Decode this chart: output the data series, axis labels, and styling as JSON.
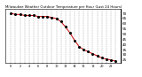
{
  "title": "Milwaukee Weather Outdoor Temperature per Hour (Last 24 Hours)",
  "hours": [
    0,
    1,
    2,
    3,
    4,
    5,
    6,
    7,
    8,
    9,
    10,
    11,
    12,
    13,
    14,
    15,
    16,
    17,
    18,
    19,
    20,
    21,
    22,
    23
  ],
  "temperatures": [
    70,
    69,
    69,
    68,
    68,
    68,
    67,
    67,
    67,
    66,
    65,
    62,
    57,
    51,
    44,
    38,
    35,
    33,
    31,
    29,
    27,
    26,
    25,
    24
  ],
  "line_color": "#cc0000",
  "dot_color": "#000000",
  "grid_color": "#999999",
  "bg_color": "#ffffff",
  "title_color": "#000000",
  "ylim": [
    22,
    74
  ],
  "ytick_values": [
    25,
    30,
    35,
    40,
    45,
    50,
    55,
    60,
    65,
    70
  ],
  "ylabel_fontsize": 3.0,
  "xlabel_fontsize": 2.5,
  "title_fontsize": 2.8,
  "linewidth": 0.7,
  "markersize": 1.2
}
